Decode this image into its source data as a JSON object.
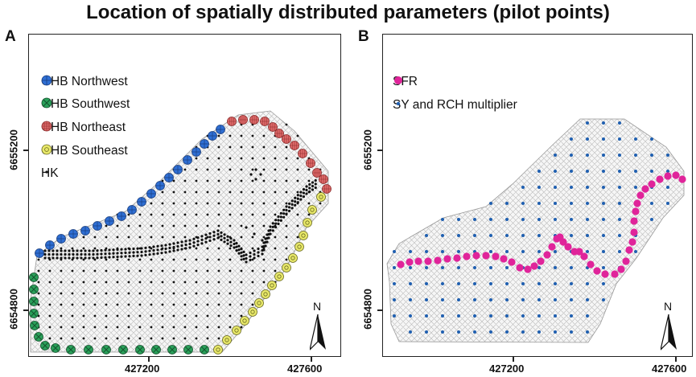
{
  "title": "Location of spatially distributed parameters (pilot points)",
  "panels": [
    {
      "letter": "A",
      "legend": [
        {
          "label": "GHB Northwest",
          "symbol": "circle-plus",
          "color": "#2f6fd4"
        },
        {
          "label": "GHB Southwest",
          "symbol": "circle-x",
          "color": "#2aa05a"
        },
        {
          "label": "GHB Northeast",
          "symbol": "circle-grid",
          "color": "#e06b6b"
        },
        {
          "label": "GHB Southeast",
          "symbol": "circle-dot",
          "color": "#e8e86a"
        },
        {
          "label": "HK",
          "symbol": "dot",
          "color": "#111111"
        }
      ],
      "y_ticks": [
        "6655200",
        "6654800"
      ],
      "x_ticks": [
        "427200",
        "427600"
      ],
      "north": "N"
    },
    {
      "letter": "B",
      "legend": [
        {
          "label": "SFR",
          "symbol": "dot-large",
          "color": "#e0249a"
        },
        {
          "label": "SY and RCH multiplier",
          "symbol": "dot-small",
          "color": "#1f5fb0"
        }
      ],
      "y_ticks": [
        "6655200",
        "6654800"
      ],
      "x_ticks": [
        "427200",
        "427600"
      ],
      "north": "N"
    }
  ],
  "colors": {
    "grid": "#b9b9b9",
    "ghb_nw": "#2f6fd4",
    "ghb_sw": "#2aa05a",
    "ghb_ne": "#e06b6b",
    "ghb_se": "#e8e86a",
    "hk": "#111111",
    "sfr": "#e0249a",
    "sy": "#1f5fb0"
  }
}
